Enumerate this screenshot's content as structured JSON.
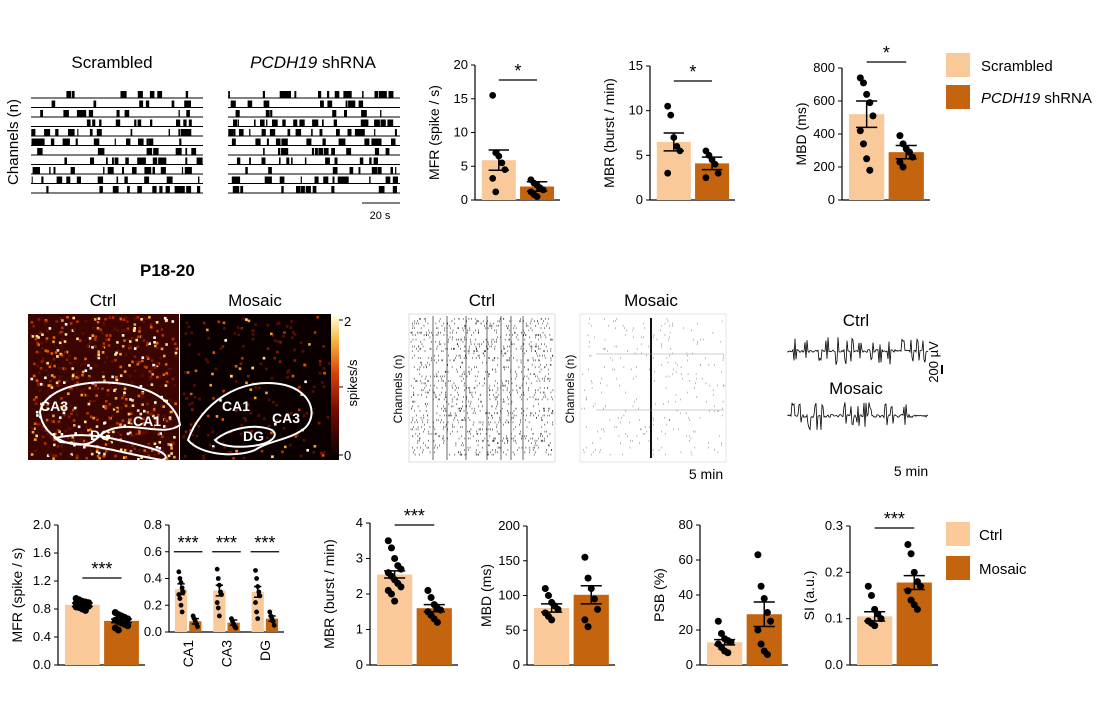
{
  "colors": {
    "light": "#f9c99a",
    "dark": "#c4640e"
  },
  "row1": {
    "raster_titles": [
      "Scrambled",
      "PCDH19 shRNA"
    ],
    "raster_title_italic_part": "PCDH19",
    "raster_title_suffix": " shRNA",
    "channels_label": "Channels (n)",
    "scalebar_label": "20 s",
    "legend": [
      "Scrambled",
      "PCDH19 shRNA"
    ]
  },
  "row2": {
    "panel_label": "P18-20",
    "heatmap_titles": [
      "Ctrl",
      "Mosaic"
    ],
    "heatmap_regions_ctrl": [
      "CA3",
      "CA1",
      "DG"
    ],
    "heatmap_regions_mosaic": [
      "CA1",
      "CA3",
      "DG"
    ],
    "colorbar_label": "spikes/s",
    "colorbar_ticks": [
      "2",
      "1",
      "0"
    ],
    "raster_titles": [
      "Ctrl",
      "Mosaic"
    ],
    "channels_label": "Channels (n)",
    "raster_scalebar": "5 min",
    "trace_titles": [
      "Ctrl",
      "Mosaic"
    ],
    "trace_scalebar_v": "200 µV",
    "trace_scalebar_t": "5 min"
  },
  "row3_legend": [
    "Ctrl",
    "Mosaic"
  ],
  "chart_data": [
    {
      "id": "top-mfr",
      "type": "bar",
      "categories": [
        "Scrambled",
        "PCDH19 shRNA"
      ],
      "values": [
        5.9,
        2.0
      ],
      "sem": [
        1.5,
        0.7
      ],
      "points": [
        [
          15.5,
          7.0,
          6.5,
          5.5,
          4.5,
          3.2,
          1.2
        ],
        [
          3.0,
          2.5,
          2.2,
          1.8,
          1.5,
          1.2,
          0.8,
          0.5
        ]
      ],
      "ylabel": "MFR (spike / s)",
      "ylim": [
        0,
        20
      ],
      "yticks": [
        0,
        5,
        10,
        15,
        20
      ],
      "sig": "*"
    },
    {
      "id": "top-mbr",
      "type": "bar",
      "categories": [
        "Scrambled",
        "PCDH19 shRNA"
      ],
      "values": [
        6.5,
        4.1
      ],
      "sem": [
        1.0,
        0.7
      ],
      "points": [
        [
          10.5,
          9.5,
          7.0,
          6.0,
          5.5,
          3.0
        ],
        [
          5.5,
          5.0,
          4.5,
          4.0,
          3.0,
          2.5
        ]
      ],
      "ylabel": "MBR (burst / min)",
      "ylim": [
        0,
        15
      ],
      "yticks": [
        0,
        5,
        10,
        15
      ],
      "sig": "*"
    },
    {
      "id": "top-mbd",
      "type": "bar",
      "categories": [
        "Scrambled",
        "PCDH19 shRNA"
      ],
      "values": [
        520,
        290
      ],
      "sem": [
        80,
        40
      ],
      "points": [
        [
          740,
          710,
          640,
          590,
          510,
          420,
          340,
          250,
          180
        ],
        [
          390,
          340,
          310,
          290,
          260,
          230,
          200
        ]
      ],
      "ylabel": "MBD (ms)",
      "ylim": [
        0,
        800
      ],
      "yticks": [
        0,
        200,
        400,
        600,
        800
      ],
      "sig": "*"
    },
    {
      "id": "bot-mfr",
      "type": "bar",
      "categories": [
        "Ctrl",
        "Mosaic"
      ],
      "values": [
        0.86,
        0.63
      ],
      "sem": [
        0.025,
        0.025
      ],
      "points": [
        [
          0.95,
          0.93,
          0.91,
          0.9,
          0.89,
          0.88,
          0.87,
          0.86,
          0.85,
          0.84,
          0.83,
          0.82,
          0.8,
          0.78
        ],
        [
          0.75,
          0.72,
          0.7,
          0.68,
          0.66,
          0.64,
          0.62,
          0.6,
          0.58,
          0.56,
          0.53,
          0.5
        ]
      ],
      "ylabel": "MFR (spike / s)",
      "ylim": [
        0,
        2.0
      ],
      "yticks": [
        0.0,
        0.4,
        0.8,
        1.2,
        1.6,
        2.0
      ],
      "sig": "***"
    },
    {
      "id": "bot-region",
      "type": "bar",
      "categories": [
        "CA1",
        "CA3",
        "DG"
      ],
      "series": [
        {
          "name": "Ctrl",
          "values": [
            0.32,
            0.31,
            0.3
          ],
          "sem": [
            0.04,
            0.04,
            0.04
          ],
          "points": [
            [
              0.45,
              0.4,
              0.37,
              0.33,
              0.3,
              0.28,
              0.25,
              0.2,
              0.15
            ],
            [
              0.47,
              0.4,
              0.35,
              0.3,
              0.28,
              0.22,
              0.18,
              0.12
            ],
            [
              0.46,
              0.4,
              0.34,
              0.3,
              0.27,
              0.22,
              0.15,
              0.1
            ]
          ]
        },
        {
          "name": "Mosaic",
          "values": [
            0.08,
            0.07,
            0.1
          ],
          "sem": [
            0.02,
            0.02,
            0.02
          ],
          "points": [
            [
              0.12,
              0.1,
              0.08,
              0.06,
              0.04
            ],
            [
              0.1,
              0.08,
              0.06,
              0.04,
              0.03
            ],
            [
              0.15,
              0.12,
              0.1,
              0.08,
              0.05
            ]
          ]
        }
      ],
      "ylabel": "",
      "ylim": [
        0,
        0.8
      ],
      "yticks": [
        0.0,
        0.2,
        0.4,
        0.6,
        0.8
      ],
      "sig": [
        "***",
        "***",
        "***"
      ]
    },
    {
      "id": "bot-mbr",
      "type": "bar",
      "categories": [
        "Ctrl",
        "Mosaic"
      ],
      "values": [
        2.55,
        1.6
      ],
      "sem": [
        0.1,
        0.1
      ],
      "points": [
        [
          3.5,
          3.3,
          3.0,
          2.8,
          2.7,
          2.6,
          2.5,
          2.4,
          2.3,
          2.2,
          2.1,
          2.0,
          1.8
        ],
        [
          2.1,
          1.9,
          1.7,
          1.6,
          1.55,
          1.5,
          1.4,
          1.3,
          1.2
        ]
      ],
      "ylabel": "MBR (burst / min)",
      "ylim": [
        0,
        4
      ],
      "yticks": [
        0,
        1,
        2,
        3,
        4
      ],
      "sig": "***"
    },
    {
      "id": "bot-mbd",
      "type": "bar",
      "categories": [
        "Ctrl",
        "Mosaic"
      ],
      "values": [
        82,
        101
      ],
      "sem": [
        6,
        13
      ],
      "points": [
        [
          110,
          100,
          90,
          85,
          80,
          75,
          70,
          65
        ],
        [
          155,
          125,
          110,
          95,
          80,
          65,
          55
        ]
      ],
      "ylabel": "MBD (ms)",
      "ylim": [
        0,
        200
      ],
      "yticks": [
        0,
        50,
        100,
        150,
        200
      ],
      "sig": ""
    },
    {
      "id": "bot-psb",
      "type": "bar",
      "categories": [
        "Ctrl",
        "Mosaic"
      ],
      "values": [
        13,
        29
      ],
      "sem": [
        1.5,
        7
      ],
      "points": [
        [
          25,
          18,
          15,
          14,
          13,
          12,
          10,
          8,
          7
        ],
        [
          63,
          45,
          38,
          30,
          25,
          20,
          12,
          8,
          6
        ]
      ],
      "ylabel": "PSB (%)",
      "ylim": [
        0,
        80
      ],
      "yticks": [
        0,
        20,
        40,
        60,
        80
      ],
      "sig": ""
    },
    {
      "id": "bot-si",
      "type": "bar",
      "categories": [
        "Ctrl",
        "Mosaic"
      ],
      "values": [
        0.105,
        0.178
      ],
      "sem": [
        0.01,
        0.015
      ],
      "points": [
        [
          0.17,
          0.15,
          0.12,
          0.11,
          0.1,
          0.095,
          0.09,
          0.085
        ],
        [
          0.26,
          0.24,
          0.2,
          0.18,
          0.17,
          0.16,
          0.14,
          0.13,
          0.12
        ]
      ],
      "ylabel": "SI (a.u.)",
      "ylim": [
        0,
        0.3
      ],
      "yticks": [
        0.0,
        0.1,
        0.2,
        0.3
      ],
      "sig": "***"
    }
  ]
}
